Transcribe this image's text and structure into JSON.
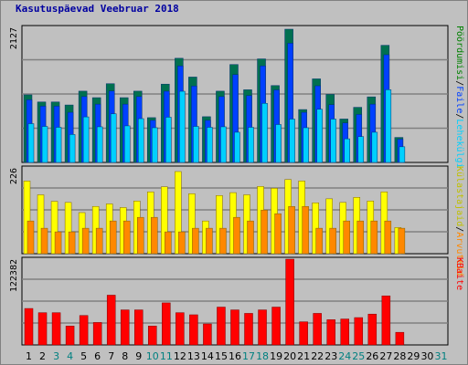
{
  "title": "Kasutuspäevad Veebruar 2018",
  "colors": {
    "hits": "#0040ff",
    "pages": "#00d0ff",
    "visits": "#007050",
    "hosts": "#ffff00",
    "visits2": "#ff8800",
    "bandwidth": "#ff0000",
    "weekend_label": "#008080",
    "weekday_label": "#000000"
  },
  "chart_data": [
    {
      "type": "bar",
      "panel": "traffic",
      "ymax_label": "2127",
      "ymax": 2127,
      "legend": [
        {
          "text": "Pöördumisi",
          "color": "#008000"
        },
        {
          "text": "/",
          "color": "#000000"
        },
        {
          "text": "Faile",
          "color": "#0040ff"
        },
        {
          "text": "/",
          "color": "#000000"
        },
        {
          "text": "Lehekülgi",
          "color": "#00d0ff"
        }
      ],
      "categories": [
        "1",
        "2",
        "3",
        "4",
        "5",
        "6",
        "7",
        "8",
        "9",
        "10",
        "11",
        "12",
        "13",
        "14",
        "15",
        "16",
        "17",
        "18",
        "19",
        "20",
        "21",
        "22",
        "23",
        "24",
        "25",
        "26",
        "27",
        "28",
        "29",
        "30",
        "31"
      ],
      "weekend": [
        3,
        4,
        10,
        11,
        17,
        18,
        24,
        25,
        31
      ],
      "series": [
        {
          "name": "Pöördumisi",
          "values": [
            1079,
            965,
            965,
            917,
            1138,
            1034,
            1257,
            1034,
            1138,
            715,
            1250,
            1663,
            1363,
            730,
            1138,
            1563,
            1160,
            1653,
            1227,
            2127,
            844,
            1334,
            1086,
            693,
            880,
            1047,
            1870,
            399,
            0,
            0,
            0
          ]
        },
        {
          "name": "Faile",
          "values": [
            1000,
            898,
            898,
            800,
            1051,
            930,
            1141,
            930,
            1051,
            672,
            1137,
            1541,
            1219,
            672,
            1051,
            1402,
            1068,
            1541,
            1158,
            1903,
            800,
            1223,
            922,
            630,
            766,
            930,
            1719,
            372,
            0,
            0,
            0
          ]
        },
        {
          "name": "Lehekülgi",
          "values": [
            619,
            575,
            561,
            446,
            727,
            569,
            777,
            584,
            699,
            554,
            722,
            1136,
            575,
            561,
            569,
            482,
            561,
            943,
            605,
            692,
            554,
            849,
            692,
            377,
            413,
            482,
            1161,
            250,
            0,
            0,
            0
          ]
        }
      ]
    },
    {
      "type": "bar",
      "panel": "visits",
      "ymax_label": "226",
      "ymax": 226,
      "legend": [
        {
          "text": "Külastajaid",
          "color": "#c0c000"
        },
        {
          "text": "/",
          "color": "#000000"
        },
        {
          "text": "Arvuteid",
          "color": "#ff8800"
        }
      ],
      "categories": [
        "1",
        "2",
        "3",
        "4",
        "5",
        "6",
        "7",
        "8",
        "9",
        "10",
        "11",
        "12",
        "13",
        "14",
        "15",
        "16",
        "17",
        "18",
        "19",
        "20",
        "21",
        "22",
        "23",
        "24",
        "25",
        "26",
        "27",
        "28",
        "29",
        "30",
        "31"
      ],
      "series": [
        {
          "name": "Külastajaid",
          "values": [
            200,
            162,
            144,
            141,
            113,
            130,
            137,
            127,
            145,
            170,
            184,
            226,
            165,
            90,
            160,
            168,
            162,
            185,
            180,
            204,
            200,
            140,
            151,
            141,
            155,
            145,
            170,
            72,
            0,
            0,
            0
          ]
        },
        {
          "name": "Arvuteid",
          "values": [
            90,
            70,
            60,
            60,
            70,
            70,
            90,
            90,
            100,
            100,
            60,
            60,
            70,
            70,
            70,
            100,
            90,
            120,
            110,
            130,
            130,
            70,
            70,
            90,
            90,
            90,
            90,
            70,
            0,
            0,
            0
          ]
        }
      ]
    },
    {
      "type": "bar",
      "panel": "bandwidth",
      "ymax_label": "122382",
      "ymax": 122382,
      "legend": [
        {
          "text": "KBaite",
          "color": "#ff0000"
        }
      ],
      "categories": [
        "1",
        "2",
        "3",
        "4",
        "5",
        "6",
        "7",
        "8",
        "9",
        "10",
        "11",
        "12",
        "13",
        "14",
        "15",
        "16",
        "17",
        "18",
        "19",
        "20",
        "21",
        "22",
        "23",
        "24",
        "25",
        "26",
        "27",
        "28",
        "29",
        "30",
        "31"
      ],
      "series": [
        {
          "name": "KBaite",
          "values": [
            52000,
            46000,
            46000,
            27000,
            42000,
            32000,
            71000,
            50000,
            50000,
            27000,
            60000,
            46000,
            43000,
            30000,
            54000,
            50000,
            45000,
            50000,
            54000,
            122382,
            33000,
            45000,
            36000,
            37000,
            39000,
            44000,
            70000,
            18000,
            0,
            0,
            0
          ]
        }
      ]
    }
  ]
}
